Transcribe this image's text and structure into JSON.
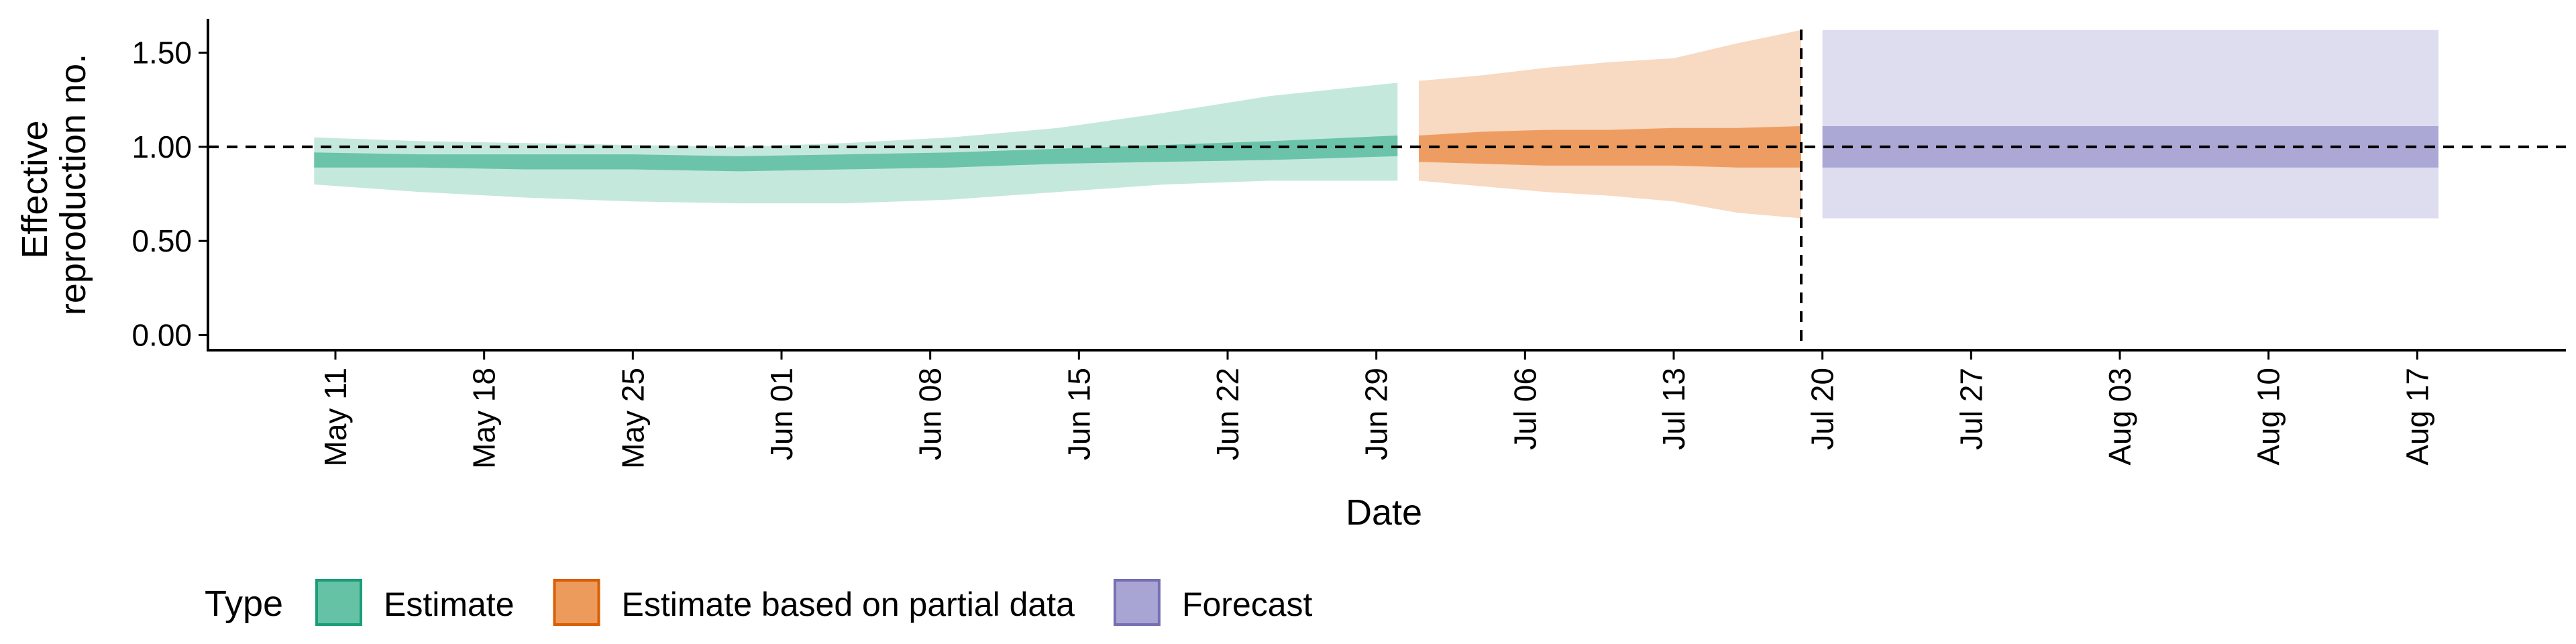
{
  "chart_data": {
    "type": "area",
    "title": "",
    "xlabel": "Date",
    "ylabel_lines": [
      "Effective",
      "reproduction no."
    ],
    "x_ticks": [
      "May 11",
      "May 18",
      "May 25",
      "Jun 01",
      "Jun 08",
      "Jun 15",
      "Jun 22",
      "Jun 29",
      "Jul 06",
      "Jul 13",
      "Jul 20",
      "Jul 27",
      "Aug 03",
      "Aug 10",
      "Aug 17"
    ],
    "x_tick_dates": [
      "2020-05-11",
      "2020-05-18",
      "2020-05-25",
      "2020-06-01",
      "2020-06-08",
      "2020-06-15",
      "2020-06-22",
      "2020-06-29",
      "2020-07-06",
      "2020-07-13",
      "2020-07-20",
      "2020-07-27",
      "2020-08-03",
      "2020-08-10",
      "2020-08-17"
    ],
    "y_ticks": [
      "0.00",
      "0.50",
      "1.00",
      "1.50"
    ],
    "y_tick_values": [
      0.0,
      0.5,
      1.0,
      1.5
    ],
    "xlim": [
      "2020-05-05",
      "2020-08-24"
    ],
    "ylim": [
      -0.08,
      1.68
    ],
    "grid": false,
    "reference_lines": {
      "horizontal_y": 1.0,
      "vertical_x": "2020-07-19",
      "style": "dashed"
    },
    "legend": {
      "title": "Type",
      "position": "bottom",
      "entries": [
        {
          "label": "Estimate",
          "color": "#66c2a5",
          "border": "#1b9e77"
        },
        {
          "label": "Estimate based on partial data",
          "color": "#ed9a5d",
          "border": "#d95f02"
        },
        {
          "label": "Forecast",
          "color": "#a8a4d4",
          "border": "#7570b3"
        }
      ]
    },
    "series": [
      {
        "name": "Estimate",
        "color": "#66c2a5",
        "x": [
          "2020-05-10",
          "2020-05-15",
          "2020-05-20",
          "2020-05-25",
          "2020-05-30",
          "2020-06-04",
          "2020-06-09",
          "2020-06-14",
          "2020-06-19",
          "2020-06-24",
          "2020-06-30"
        ],
        "outer_upper": [
          1.05,
          1.03,
          1.02,
          1.01,
          1.0,
          1.02,
          1.05,
          1.1,
          1.18,
          1.27,
          1.34
        ],
        "outer_lower": [
          0.8,
          0.76,
          0.73,
          0.71,
          0.7,
          0.7,
          0.72,
          0.76,
          0.8,
          0.82,
          0.82
        ],
        "inner_upper": [
          0.97,
          0.96,
          0.96,
          0.96,
          0.95,
          0.96,
          0.97,
          0.99,
          1.01,
          1.03,
          1.06
        ],
        "inner_lower": [
          0.89,
          0.89,
          0.88,
          0.88,
          0.87,
          0.88,
          0.89,
          0.91,
          0.92,
          0.93,
          0.95
        ]
      },
      {
        "name": "Estimate based on partial data",
        "color": "#ed9a5d",
        "x": [
          "2020-07-01",
          "2020-07-04",
          "2020-07-07",
          "2020-07-10",
          "2020-07-13",
          "2020-07-16",
          "2020-07-19"
        ],
        "outer_upper": [
          1.35,
          1.38,
          1.42,
          1.45,
          1.47,
          1.55,
          1.62
        ],
        "outer_lower": [
          0.82,
          0.79,
          0.76,
          0.74,
          0.71,
          0.65,
          0.62
        ],
        "inner_upper": [
          1.06,
          1.08,
          1.09,
          1.09,
          1.1,
          1.1,
          1.11
        ],
        "inner_lower": [
          0.92,
          0.91,
          0.9,
          0.9,
          0.9,
          0.89,
          0.89
        ]
      },
      {
        "name": "Forecast",
        "color": "#a8a4d4",
        "x": [
          "2020-07-20",
          "2020-08-18"
        ],
        "outer_upper": [
          1.62,
          1.62
        ],
        "outer_lower": [
          0.62,
          0.62
        ],
        "inner_upper": [
          1.11,
          1.11
        ],
        "inner_lower": [
          0.89,
          0.89
        ]
      }
    ]
  }
}
